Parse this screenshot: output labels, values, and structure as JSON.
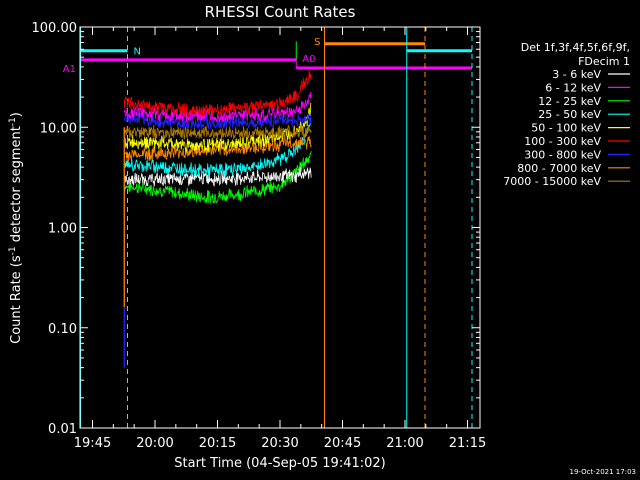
{
  "chart_data": {
    "type": "line",
    "title": "RHESSI Count Rates",
    "xlabel": "Start Time (04-Sep-05 19:41:02)",
    "ylabel_main": "Count Rate (s",
    "ylabel_sup1": "-1",
    "ylabel_mid": " detector segment",
    "ylabel_sup2": "-1",
    "ylabel_end": ")",
    "y_scale": "log",
    "ylim": [
      0.01,
      100
    ],
    "xlim": [
      19.7,
      21.3
    ],
    "y_ticks": [
      {
        "v": 0.01,
        "label": "0.01"
      },
      {
        "v": 0.1,
        "label": "0.10"
      },
      {
        "v": 1,
        "label": "1.00"
      },
      {
        "v": 10,
        "label": "10.00"
      },
      {
        "v": 100,
        "label": "100.00"
      }
    ],
    "x_ticks": [
      {
        "v": 19.75,
        "label": "19:45"
      },
      {
        "v": 20.0,
        "label": "20:00"
      },
      {
        "v": 20.25,
        "label": "20:15"
      },
      {
        "v": 20.5,
        "label": "20:30"
      },
      {
        "v": 20.75,
        "label": "20:45"
      },
      {
        "v": 21.0,
        "label": "21:00"
      },
      {
        "v": 21.25,
        "label": "21:15"
      }
    ],
    "legend": {
      "placement": "right",
      "header1": "Det 1f,3f,4f,5f,6f,9f,",
      "header2": "FDecim 1",
      "entries": [
        {
          "label": "3 - 6 keV",
          "color": "#ffffff"
        },
        {
          "label": "6 - 12 keV",
          "color": "#ff00ff"
        },
        {
          "label": "12 - 25 keV",
          "color": "#00ff00"
        },
        {
          "label": "25 - 50 keV",
          "color": "#00ffff"
        },
        {
          "label": "50 - 100 keV",
          "color": "#ffff00"
        },
        {
          "label": "100 - 300 keV",
          "color": "#ff0000"
        },
        {
          "label": "300 - 800 keV",
          "color": "#2222ff"
        },
        {
          "label": "800 - 7000 keV",
          "color": "#ff8800"
        },
        {
          "label": "7000 - 15000 keV",
          "color": "#b07a00"
        }
      ]
    },
    "series": [
      {
        "color": "#ffffff",
        "points": [
          [
            19.877,
            3.0
          ],
          [
            20.0,
            3.0
          ],
          [
            20.15,
            3.1
          ],
          [
            20.3,
            3.1
          ],
          [
            20.45,
            3.2
          ],
          [
            20.53,
            3.3
          ],
          [
            20.566,
            3.2
          ],
          [
            20.57,
            3.4
          ],
          [
            20.6,
            3.5
          ],
          [
            20.625,
            3.6
          ]
        ]
      },
      {
        "color": "#ff00ff",
        "points": [
          [
            19.877,
            14
          ],
          [
            20.0,
            13.5
          ],
          [
            20.15,
            13
          ],
          [
            20.3,
            13
          ],
          [
            20.45,
            13.5
          ],
          [
            20.53,
            14
          ],
          [
            20.58,
            15
          ],
          [
            20.61,
            18
          ],
          [
            20.625,
            22
          ]
        ]
      },
      {
        "color": "#00ff00",
        "points": [
          [
            19.877,
            2.6
          ],
          [
            20.0,
            2.4
          ],
          [
            20.1,
            2.2
          ],
          [
            20.2,
            2.0
          ],
          [
            20.3,
            2.1
          ],
          [
            20.4,
            2.3
          ],
          [
            20.5,
            2.6
          ],
          [
            20.55,
            3.3
          ],
          [
            20.6,
            4.5
          ],
          [
            20.625,
            5.5
          ]
        ]
      },
      {
        "color": "#00ffff",
        "points": [
          [
            19.877,
            4.2
          ],
          [
            20.0,
            4.1
          ],
          [
            20.1,
            3.9
          ],
          [
            20.2,
            3.7
          ],
          [
            20.3,
            3.8
          ],
          [
            20.4,
            4.0
          ],
          [
            20.5,
            4.8
          ],
          [
            20.57,
            6.0
          ],
          [
            20.6,
            8
          ],
          [
            20.625,
            11
          ]
        ]
      },
      {
        "color": "#ffff00",
        "points": [
          [
            19.877,
            7.2
          ],
          [
            20.0,
            7.0
          ],
          [
            20.15,
            6.6
          ],
          [
            20.3,
            6.7
          ],
          [
            20.45,
            7.5
          ],
          [
            20.52,
            8.5
          ],
          [
            20.58,
            10
          ],
          [
            20.61,
            12
          ],
          [
            20.625,
            16
          ]
        ]
      },
      {
        "color": "#ff0000",
        "points": [
          [
            19.877,
            18
          ],
          [
            20.0,
            16
          ],
          [
            20.15,
            14.5
          ],
          [
            20.3,
            15
          ],
          [
            20.45,
            16.5
          ],
          [
            20.52,
            18
          ],
          [
            20.57,
            21
          ],
          [
            20.6,
            28
          ],
          [
            20.625,
            34
          ]
        ]
      },
      {
        "color": "#2222ff",
        "points": [
          [
            19.877,
            12.5
          ],
          [
            20.0,
            11.5
          ],
          [
            20.15,
            11
          ],
          [
            20.3,
            11
          ],
          [
            20.45,
            11.5
          ],
          [
            20.52,
            12
          ],
          [
            20.56,
            11.5
          ],
          [
            20.6,
            12
          ],
          [
            20.625,
            12
          ]
        ]
      },
      {
        "color": "#ff8800",
        "points": [
          [
            19.877,
            5.3
          ],
          [
            20.0,
            5.5
          ],
          [
            20.15,
            5.7
          ],
          [
            20.3,
            6.0
          ],
          [
            20.45,
            6.5
          ],
          [
            20.55,
            7.0
          ],
          [
            20.6,
            7.0
          ],
          [
            20.625,
            7.0
          ]
        ]
      },
      {
        "color": "#b07a00",
        "points": [
          [
            19.877,
            9.0
          ],
          [
            20.0,
            8.9
          ],
          [
            20.15,
            8.8
          ],
          [
            20.3,
            8.7
          ],
          [
            20.45,
            8.8
          ],
          [
            20.55,
            8.9
          ],
          [
            20.625,
            9.0
          ]
        ]
      }
    ],
    "rise": [
      {
        "color": "#ff8800",
        "y_from": 0.16,
        "y_to": 10
      },
      {
        "color": "#2222ff",
        "y_from": 0.04,
        "y_to": 0.16
      }
    ],
    "intervals": [
      {
        "label": "N",
        "color": "#00ffff",
        "x1": 19.7,
        "x2": 19.89,
        "y": 58,
        "label_pos": "right"
      },
      {
        "label": "",
        "color": "#00ffff",
        "x1": 21.007,
        "x2": 21.268,
        "y": 58,
        "label_pos": "none"
      },
      {
        "label": "A1",
        "color": "#ff00ff",
        "x1": 19.7,
        "x2": 20.565,
        "y": 47,
        "label_pos": "left"
      },
      {
        "label": "A0",
        "color": "#ff00ff",
        "x1": 20.565,
        "x2": 21.268,
        "y": 39,
        "label_pos": "above"
      },
      {
        "label": "S",
        "color": "#ff8800",
        "x1": 20.678,
        "x2": 21.08,
        "y": 68,
        "label_pos": "left"
      }
    ],
    "vlines": [
      {
        "x": 19.702,
        "color": "#00ffff",
        "style": "solid"
      },
      {
        "x": 19.89,
        "color": "#00ffff",
        "style": "dashed"
      },
      {
        "x": 20.565,
        "color": "#00ff00",
        "style": "solid",
        "y_min": 47,
        "y_max": 72
      },
      {
        "x": 20.565,
        "color": "#ff00ff",
        "style": "solid",
        "y_min": 39,
        "y_max": 47
      },
      {
        "x": 20.678,
        "color": "#ff8800",
        "style": "solid"
      },
      {
        "x": 21.007,
        "color": "#00ffff",
        "style": "solid"
      },
      {
        "x": 21.08,
        "color": "#ff8800",
        "style": "dashed"
      },
      {
        "x": 21.268,
        "color": "#00ffff",
        "style": "dashed"
      }
    ],
    "grid": false
  },
  "footer": {
    "timestamp": "19-Oct-2021 17:03"
  }
}
